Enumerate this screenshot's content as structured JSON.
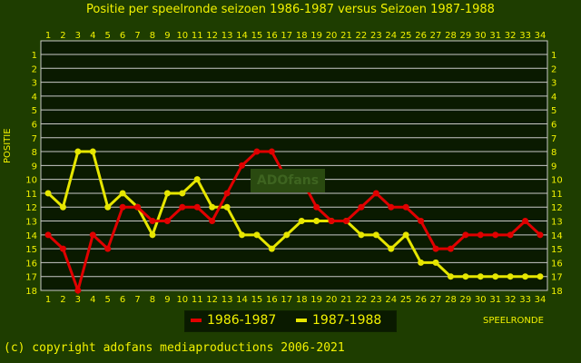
{
  "title": "Positie per speelronde seizoen 1986-1987 versus Seizoen 1987-1988",
  "ylabel": "POSITIE",
  "xlabel": "SPEELRONDE",
  "copyright": "(c) copyright adofans mediaproductions 2006-2021",
  "watermark": "ADOfans",
  "colors": {
    "background": "#1e3d00",
    "grid": "#c8c8c8",
    "text": "#f2f200",
    "series1": "#e00000",
    "series2": "#e6e600"
  },
  "chart_data": {
    "type": "line",
    "title": "Positie per speelronde seizoen 1986-1987 versus Seizoen 1987-1988",
    "xlabel": "SPEELRONDE",
    "ylabel": "POSITIE",
    "x": [
      1,
      2,
      3,
      4,
      5,
      6,
      7,
      8,
      9,
      10,
      11,
      12,
      13,
      14,
      15,
      16,
      17,
      18,
      19,
      20,
      21,
      22,
      23,
      24,
      25,
      26,
      27,
      28,
      29,
      30,
      31,
      32,
      33,
      34
    ],
    "xlim": [
      1,
      34
    ],
    "ylim": [
      1,
      18
    ],
    "y_inverted": true,
    "grid": true,
    "legend_position": "bottom-center",
    "series": [
      {
        "name": "1986-1987",
        "color": "#e00000",
        "values": [
          14,
          15,
          18,
          14,
          15,
          12,
          12,
          13,
          13,
          12,
          12,
          13,
          11,
          9,
          8,
          8,
          10,
          10,
          12,
          13,
          13,
          12,
          11,
          12,
          12,
          13,
          15,
          15,
          14,
          14,
          14,
          14,
          13,
          14
        ]
      },
      {
        "name": "1987-1988",
        "color": "#e6e600",
        "values": [
          11,
          12,
          8,
          8,
          12,
          11,
          12,
          14,
          11,
          11,
          10,
          12,
          12,
          14,
          14,
          15,
          14,
          13,
          13,
          13,
          13,
          14,
          14,
          15,
          14,
          16,
          16,
          17,
          17,
          17,
          17,
          17,
          17,
          17
        ]
      }
    ]
  }
}
